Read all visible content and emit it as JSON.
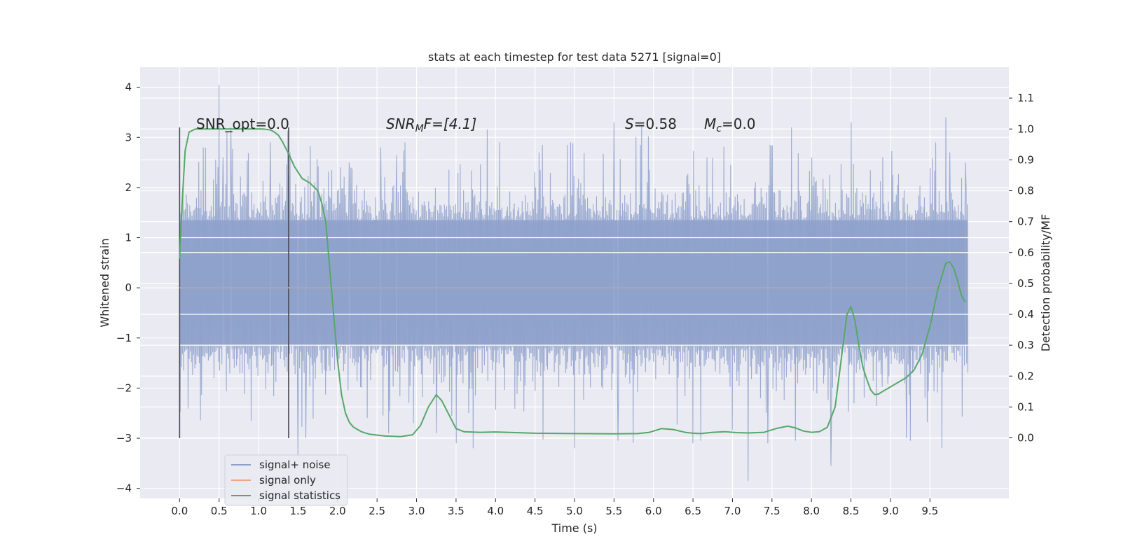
{
  "chart_data": {
    "type": "line",
    "title": "stats at each timestep for test data 5271 [signal=0]",
    "xlabel": "Time (s)",
    "ylabel": "Whitened strain",
    "y2label": "Detection probability/MF",
    "xlim": [
      -0.5,
      10.5
    ],
    "ylim": [
      -4.2,
      4.4
    ],
    "y2lim": [
      -0.196,
      1.2
    ],
    "xticks": [
      "0.0",
      "0.5",
      "1.0",
      "1.5",
      "2.0",
      "2.5",
      "3.0",
      "3.5",
      "4.0",
      "4.5",
      "5.0",
      "5.5",
      "6.0",
      "6.5",
      "7.0",
      "7.5",
      "8.0",
      "8.5",
      "9.0",
      "9.5"
    ],
    "yticks": [
      "4",
      "3",
      "2",
      "1",
      "0",
      "−1",
      "−2",
      "−3",
      "−4"
    ],
    "y2ticks": [
      "1.1",
      "1.0",
      "0.9",
      "0.8",
      "0.7",
      "0.6",
      "0.5",
      "0.4",
      "0.3",
      "0.2",
      "0.1",
      "0.0"
    ],
    "grid": true,
    "legend_position": "lower-left",
    "legend": [
      "signal+ noise",
      "signal only",
      "signal statistics"
    ],
    "annotations": {
      "snr_opt": "SNR_opt=0.0",
      "snr_mf_main": "SNR",
      "snr_mf_sub": "M",
      "snr_mf_rest": "F=[4.1]",
      "s_main": "S",
      "s_rest": "=0.58",
      "mc_main": "M",
      "mc_sub": "c",
      "mc_rest": "=0.0"
    },
    "vertical_markers": [
      {
        "x": 0.0,
        "y_range": [
          -3.0,
          3.2
        ]
      },
      {
        "x": 1.38,
        "y_range": [
          -3.0,
          3.2
        ]
      }
    ],
    "series": [
      {
        "name": "signal+ noise",
        "color": "#8da0cb",
        "axis": "left",
        "x_range": [
          0.0,
          9.98
        ],
        "baseline_band": [
          -1.15,
          1.35
        ],
        "spikes_up": [
          [
            0.5,
            4.05
          ],
          [
            0.55,
            2.6
          ],
          [
            0.6,
            3.1
          ],
          [
            0.65,
            3.2
          ],
          [
            0.3,
            2.8
          ],
          [
            1.15,
            2.9
          ],
          [
            1.4,
            2.7
          ],
          [
            2.15,
            2.5
          ],
          [
            2.55,
            2.8
          ],
          [
            2.65,
            2.7
          ],
          [
            2.75,
            2.65
          ],
          [
            3.5,
            2.8
          ],
          [
            3.72,
            3.1
          ],
          [
            4.05,
            2.9
          ],
          [
            4.55,
            2.7
          ],
          [
            4.95,
            2.9
          ],
          [
            5.5,
            3.3
          ],
          [
            5.85,
            3.25
          ],
          [
            6.5,
            3.1
          ],
          [
            6.68,
            2.6
          ],
          [
            7.2,
            3.3
          ],
          [
            7.45,
            3.6
          ],
          [
            7.75,
            3.2
          ],
          [
            8.5,
            3.3
          ],
          [
            8.9,
            2.6
          ],
          [
            9.2,
            2.9
          ],
          [
            9.57,
            2.9
          ],
          [
            9.7,
            3.4
          ],
          [
            9.75,
            2.7
          ],
          [
            9.95,
            2.5
          ]
        ],
        "spikes_down": [
          [
            1.5,
            -3.35
          ],
          [
            1.6,
            -3.0
          ],
          [
            2.65,
            -2.9
          ],
          [
            3.25,
            -2.9
          ],
          [
            3.5,
            -3.1
          ],
          [
            3.72,
            -3.2
          ],
          [
            5.0,
            -3.2
          ],
          [
            5.55,
            -3.05
          ],
          [
            6.5,
            -3.1
          ],
          [
            6.6,
            -3.05
          ],
          [
            7.2,
            -3.85
          ],
          [
            7.45,
            -3.1
          ],
          [
            7.8,
            -3.05
          ],
          [
            8.25,
            -3.55
          ],
          [
            9.2,
            -3.0
          ],
          [
            9.25,
            -3.05
          ],
          [
            9.65,
            -3.2
          ]
        ],
        "noise_sigma": 0.75
      },
      {
        "name": "signal only",
        "color": "#e8a98a",
        "axis": "left",
        "x": [
          0.0,
          9.98
        ],
        "y": [
          0.0,
          0.0
        ]
      },
      {
        "name": "signal statistics",
        "color": "#55a868",
        "axis": "right",
        "x": [
          0.0,
          0.03,
          0.07,
          0.12,
          0.2,
          0.3,
          0.5,
          0.7,
          0.9,
          1.05,
          1.15,
          1.2,
          1.25,
          1.3,
          1.38,
          1.45,
          1.55,
          1.65,
          1.75,
          1.8,
          1.85,
          1.9,
          1.95,
          2.0,
          2.05,
          2.1,
          2.15,
          2.2,
          2.3,
          2.4,
          2.6,
          2.8,
          2.95,
          3.05,
          3.15,
          3.25,
          3.32,
          3.4,
          3.5,
          3.6,
          3.8,
          4.0,
          4.5,
          5.0,
          5.5,
          5.8,
          5.95,
          6.1,
          6.25,
          6.4,
          6.5,
          6.6,
          6.75,
          6.9,
          7.05,
          7.2,
          7.4,
          7.55,
          7.7,
          7.8,
          7.9,
          8.0,
          8.1,
          8.2,
          8.3,
          8.35,
          8.4,
          8.45,
          8.5,
          8.55,
          8.6,
          8.65,
          8.7,
          8.75,
          8.8,
          8.85,
          8.9,
          9.0,
          9.1,
          9.2,
          9.3,
          9.4,
          9.5,
          9.6,
          9.7,
          9.75,
          9.8,
          9.85,
          9.9,
          9.95
        ],
        "y": [
          0.58,
          0.75,
          0.93,
          0.99,
          1.0,
          1.0,
          1.0,
          1.0,
          1.0,
          1.0,
          0.997,
          0.99,
          0.98,
          0.96,
          0.92,
          0.88,
          0.84,
          0.825,
          0.8,
          0.76,
          0.7,
          0.55,
          0.4,
          0.25,
          0.14,
          0.08,
          0.05,
          0.035,
          0.02,
          0.012,
          0.006,
          0.004,
          0.01,
          0.04,
          0.1,
          0.14,
          0.12,
          0.08,
          0.03,
          0.02,
          0.018,
          0.019,
          0.015,
          0.014,
          0.013,
          0.014,
          0.018,
          0.03,
          0.027,
          0.018,
          0.015,
          0.014,
          0.018,
          0.02,
          0.017,
          0.016,
          0.018,
          0.03,
          0.038,
          0.032,
          0.022,
          0.018,
          0.02,
          0.034,
          0.1,
          0.2,
          0.3,
          0.4,
          0.425,
          0.38,
          0.3,
          0.23,
          0.19,
          0.155,
          0.14,
          0.142,
          0.15,
          0.165,
          0.18,
          0.195,
          0.22,
          0.27,
          0.36,
          0.48,
          0.565,
          0.57,
          0.55,
          0.51,
          0.46,
          0.44
        ]
      }
    ]
  }
}
